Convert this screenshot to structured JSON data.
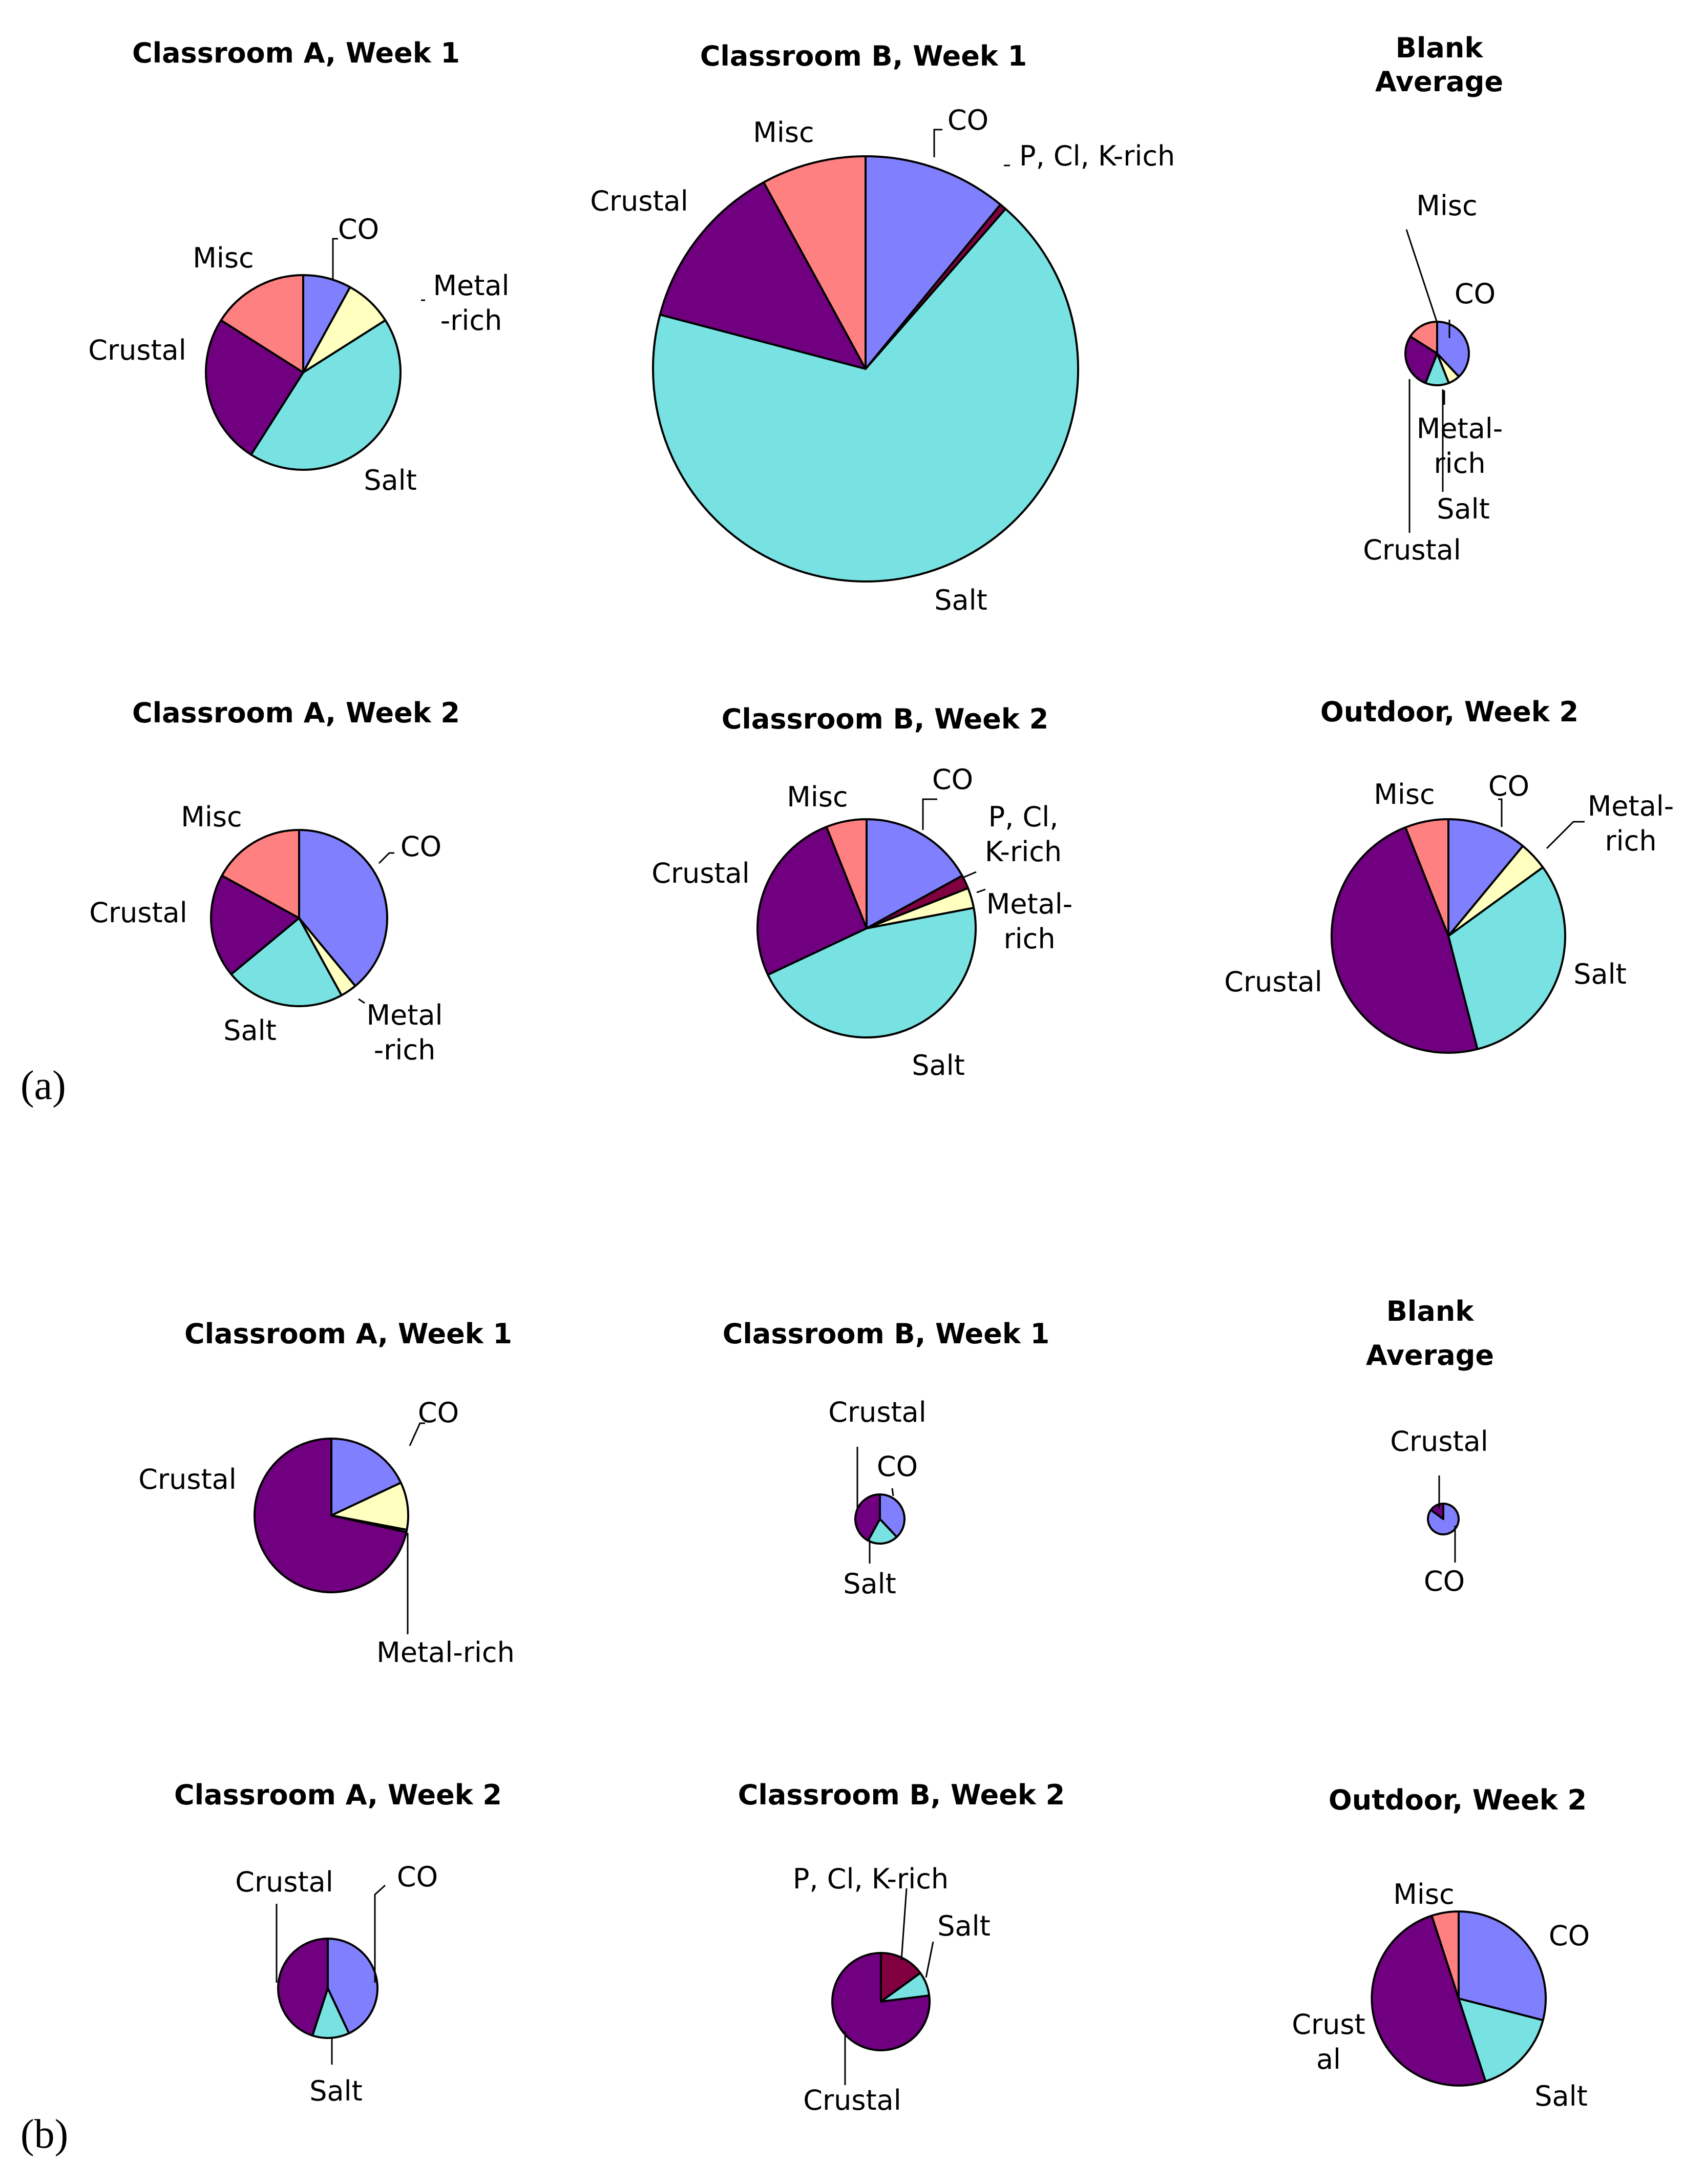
{
  "panels": [
    {
      "label": "(a)"
    },
    {
      "label": "(b)"
    }
  ],
  "colors": {
    "CO": "#8080ff",
    "P, Cl, K-rich": "#800040",
    "Metal-rich": "#ffffc0",
    "Salt": "#78e2e2",
    "Crustal": "#700080",
    "Misc": "#ff8080"
  },
  "chart_data": [
    {
      "type": "pie",
      "panel": "(a)",
      "title": [
        "Classroom A, Week 1"
      ],
      "slices": [
        {
          "category": "CO",
          "label": [
            "CO"
          ],
          "value": 8
        },
        {
          "category": "Metal-rich",
          "label": [
            "Metal",
            "-rich"
          ],
          "value": 8
        },
        {
          "category": "Salt",
          "label": [
            "Salt"
          ],
          "value": 43
        },
        {
          "category": "Crustal",
          "label": [
            "Crustal"
          ],
          "value": 25
        },
        {
          "category": "Misc",
          "label": [
            "Misc"
          ],
          "value": 16
        }
      ]
    },
    {
      "type": "pie",
      "panel": "(a)",
      "title": [
        "Classroom B, Week 1"
      ],
      "slices": [
        {
          "category": "CO",
          "label": [
            "CO"
          ],
          "value": 11
        },
        {
          "category": "P, Cl, K-rich",
          "label": [
            "P, Cl, K-rich"
          ],
          "value": 0.5
        },
        {
          "category": "Salt",
          "label": [
            "Salt"
          ],
          "value": 68
        },
        {
          "category": "Crustal",
          "label": [
            "Crustal"
          ],
          "value": 13
        },
        {
          "category": "Misc",
          "label": [
            "Misc"
          ],
          "value": 8
        }
      ]
    },
    {
      "type": "pie",
      "panel": "(a)",
      "title": [
        "Blank",
        "Average"
      ],
      "slices": [
        {
          "category": "CO",
          "label": [
            "CO"
          ],
          "value": 38
        },
        {
          "category": "Metal-rich",
          "label": [
            "Metal-",
            "rich"
          ],
          "value": 6
        },
        {
          "category": "Salt",
          "label": [
            "Salt"
          ],
          "value": 12
        },
        {
          "category": "Crustal",
          "label": [
            "Crustal"
          ],
          "value": 28
        },
        {
          "category": "Misc",
          "label": [
            "Misc"
          ],
          "value": 16
        }
      ]
    },
    {
      "type": "pie",
      "panel": "(a)",
      "title": [
        "Classroom A, Week 2"
      ],
      "slices": [
        {
          "category": "CO",
          "label": [
            "CO"
          ],
          "value": 39
        },
        {
          "category": "Metal-rich",
          "label": [
            "Metal",
            "-rich"
          ],
          "value": 3
        },
        {
          "category": "Salt",
          "label": [
            "Salt"
          ],
          "value": 22
        },
        {
          "category": "Crustal",
          "label": [
            "Crustal"
          ],
          "value": 19
        },
        {
          "category": "Misc",
          "label": [
            "Misc"
          ],
          "value": 17
        }
      ]
    },
    {
      "type": "pie",
      "panel": "(a)",
      "title": [
        "Classroom B, Week 2"
      ],
      "slices": [
        {
          "category": "CO",
          "label": [
            "CO"
          ],
          "value": 17
        },
        {
          "category": "P, Cl, K-rich",
          "label": [
            "P, Cl,",
            "K-rich"
          ],
          "value": 2
        },
        {
          "category": "Metal-rich",
          "label": [
            "Metal-",
            "rich"
          ],
          "value": 3
        },
        {
          "category": "Salt",
          "label": [
            "Salt"
          ],
          "value": 46
        },
        {
          "category": "Crustal",
          "label": [
            "Crustal"
          ],
          "value": 26
        },
        {
          "category": "Misc",
          "label": [
            "Misc"
          ],
          "value": 6
        }
      ]
    },
    {
      "type": "pie",
      "panel": "(a)",
      "title": [
        "Outdoor, Week 2"
      ],
      "slices": [
        {
          "category": "CO",
          "label": [
            "CO"
          ],
          "value": 11
        },
        {
          "category": "Metal-rich",
          "label": [
            "Metal-",
            "rich"
          ],
          "value": 4
        },
        {
          "category": "Salt",
          "label": [
            "Salt"
          ],
          "value": 31
        },
        {
          "category": "Crustal",
          "label": [
            "Crustal"
          ],
          "value": 48
        },
        {
          "category": "Misc",
          "label": [
            "Misc"
          ],
          "value": 6
        }
      ]
    },
    {
      "type": "pie",
      "panel": "(b)",
      "title": [
        "Classroom A, Week 1"
      ],
      "slices": [
        {
          "category": "CO",
          "label": [
            "CO"
          ],
          "value": 18
        },
        {
          "category": "Metal-rich",
          "label": [
            "Metal-rich"
          ],
          "value": 10
        },
        {
          "category": "Salt",
          "label": [],
          "value": 0.5
        },
        {
          "category": "Crustal",
          "label": [
            "Crustal"
          ],
          "value": 71.5
        }
      ]
    },
    {
      "type": "pie",
      "panel": "(b)",
      "title": [
        "Classroom B, Week 1"
      ],
      "slices": [
        {
          "category": "CO",
          "label": [
            "CO"
          ],
          "value": 38
        },
        {
          "category": "Salt",
          "label": [
            "Salt"
          ],
          "value": 20
        },
        {
          "category": "Crustal",
          "label": [
            "Crustal"
          ],
          "value": 42
        }
      ]
    },
    {
      "type": "pie",
      "panel": "(b)",
      "title": [
        "Blank",
        "Average"
      ],
      "slices": [
        {
          "category": "CO",
          "label": [
            "CO"
          ],
          "value": 85
        },
        {
          "category": "Crustal",
          "label": [
            "Crustal"
          ],
          "value": 15
        }
      ]
    },
    {
      "type": "pie",
      "panel": "(b)",
      "title": [
        "Classroom A, Week 2"
      ],
      "slices": [
        {
          "category": "CO",
          "label": [
            "CO"
          ],
          "value": 43
        },
        {
          "category": "Salt",
          "label": [
            "Salt"
          ],
          "value": 12
        },
        {
          "category": "Crustal",
          "label": [
            "Crustal"
          ],
          "value": 45
        }
      ]
    },
    {
      "type": "pie",
      "panel": "(b)",
      "title": [
        "Classroom B, Week 2"
      ],
      "slices": [
        {
          "category": "P, Cl, K-rich",
          "label": [
            "P, Cl, K-rich"
          ],
          "value": 15
        },
        {
          "category": "Salt",
          "label": [
            "Salt"
          ],
          "value": 8
        },
        {
          "category": "Crustal",
          "label": [
            "Crustal"
          ],
          "value": 77
        }
      ]
    },
    {
      "type": "pie",
      "panel": "(b)",
      "title": [
        "Outdoor, Week 2"
      ],
      "slices": [
        {
          "category": "CO",
          "label": [
            "CO"
          ],
          "value": 29
        },
        {
          "category": "Salt",
          "label": [
            "Salt"
          ],
          "value": 16
        },
        {
          "category": "Crustal",
          "label": [
            "Crust",
            "al"
          ],
          "value": 50
        },
        {
          "category": "Misc",
          "label": [
            "Misc"
          ],
          "value": 5
        }
      ]
    }
  ]
}
